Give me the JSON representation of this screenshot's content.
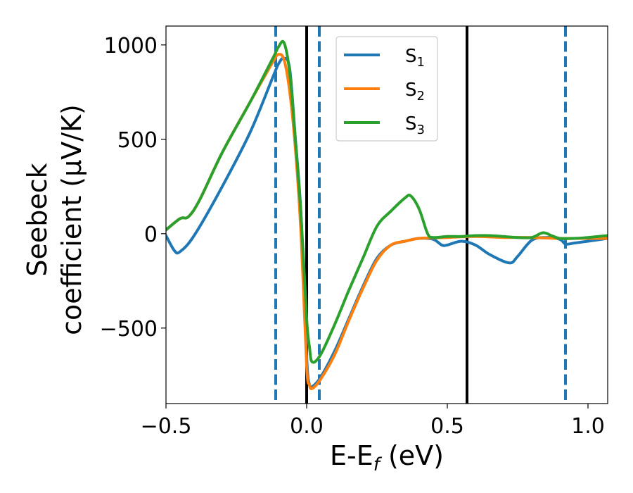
{
  "chart_data": {
    "type": "line",
    "title": "",
    "xlabel": {
      "main": "E-E",
      "sub": "f",
      "unit": " (eV)"
    },
    "ylabel": {
      "line1": "Seebeck",
      "line2": "coefficient  (μV/K)"
    },
    "xlim": [
      -0.5,
      1.07
    ],
    "ylim": [
      -900,
      1100
    ],
    "xticks": [
      -0.5,
      0.0,
      0.5,
      1.0
    ],
    "xtick_labels": [
      "−0.5",
      "0.0",
      "0.5",
      "1.0"
    ],
    "yticks": [
      -500,
      0,
      500,
      1000
    ],
    "ytick_labels": [
      "−500",
      "0",
      "500",
      "1000"
    ],
    "grid": false,
    "legend_position": "top-center",
    "solid_vlines": [
      0.0,
      0.57
    ],
    "dashed_vlines": [
      -0.11,
      0.045,
      0.92
    ],
    "colors": {
      "S1": "#1f77b4",
      "S2": "#ff7f0e",
      "S3": "#2ca02c",
      "solid_vline": "#000000",
      "dashed_vline": "#1f77b4"
    },
    "series": [
      {
        "name": "S",
        "sub": "1",
        "color": "#1f77b4",
        "points": [
          [
            -0.5,
            -10
          ],
          [
            -0.47,
            -90
          ],
          [
            -0.45,
            -95
          ],
          [
            -0.4,
            -10
          ],
          [
            -0.3,
            250
          ],
          [
            -0.2,
            540
          ],
          [
            -0.12,
            830
          ],
          [
            -0.1,
            900
          ],
          [
            -0.08,
            930
          ],
          [
            -0.06,
            870
          ],
          [
            -0.04,
            500
          ],
          [
            -0.02,
            100
          ],
          [
            0.0,
            -650
          ],
          [
            0.01,
            -800
          ],
          [
            0.02,
            -810
          ],
          [
            0.05,
            -760
          ],
          [
            0.1,
            -620
          ],
          [
            0.15,
            -450
          ],
          [
            0.2,
            -280
          ],
          [
            0.25,
            -130
          ],
          [
            0.3,
            -60
          ],
          [
            0.35,
            -40
          ],
          [
            0.4,
            -25
          ],
          [
            0.45,
            -30
          ],
          [
            0.48,
            -60
          ],
          [
            0.5,
            -60
          ],
          [
            0.55,
            -40
          ],
          [
            0.6,
            -60
          ],
          [
            0.65,
            -110
          ],
          [
            0.72,
            -155
          ],
          [
            0.75,
            -120
          ],
          [
            0.8,
            -35
          ],
          [
            0.85,
            -20
          ],
          [
            0.9,
            -30
          ],
          [
            0.92,
            -55
          ],
          [
            0.95,
            -50
          ],
          [
            1.0,
            -40
          ],
          [
            1.07,
            -25
          ]
        ]
      },
      {
        "name": "S",
        "sub": "2",
        "color": "#ff7f0e",
        "points": [
          [
            -0.5,
            20
          ],
          [
            -0.45,
            80
          ],
          [
            -0.42,
            90
          ],
          [
            -0.38,
            180
          ],
          [
            -0.3,
            430
          ],
          [
            -0.2,
            700
          ],
          [
            -0.12,
            910
          ],
          [
            -0.1,
            950
          ],
          [
            -0.08,
            920
          ],
          [
            -0.06,
            750
          ],
          [
            -0.04,
            450
          ],
          [
            -0.02,
            0
          ],
          [
            0.0,
            -700
          ],
          [
            0.01,
            -800
          ],
          [
            0.02,
            -820
          ],
          [
            0.05,
            -770
          ],
          [
            0.1,
            -640
          ],
          [
            0.15,
            -460
          ],
          [
            0.2,
            -290
          ],
          [
            0.25,
            -140
          ],
          [
            0.3,
            -60
          ],
          [
            0.35,
            -40
          ],
          [
            0.4,
            -25
          ],
          [
            0.5,
            -20
          ],
          [
            0.6,
            -15
          ],
          [
            0.7,
            -20
          ],
          [
            0.8,
            -20
          ],
          [
            0.9,
            -25
          ],
          [
            1.0,
            -25
          ],
          [
            1.07,
            -25
          ]
        ]
      },
      {
        "name": "S",
        "sub": "3",
        "color": "#2ca02c",
        "points": [
          [
            -0.5,
            20
          ],
          [
            -0.45,
            80
          ],
          [
            -0.42,
            90
          ],
          [
            -0.38,
            180
          ],
          [
            -0.3,
            430
          ],
          [
            -0.2,
            700
          ],
          [
            -0.12,
            930
          ],
          [
            -0.1,
            990
          ],
          [
            -0.08,
            1010
          ],
          [
            -0.06,
            850
          ],
          [
            -0.04,
            500
          ],
          [
            -0.02,
            100
          ],
          [
            0.0,
            -450
          ],
          [
            0.01,
            -600
          ],
          [
            0.02,
            -680
          ],
          [
            0.05,
            -640
          ],
          [
            0.1,
            -480
          ],
          [
            0.15,
            -300
          ],
          [
            0.2,
            -130
          ],
          [
            0.25,
            40
          ],
          [
            0.3,
            120
          ],
          [
            0.35,
            190
          ],
          [
            0.37,
            200
          ],
          [
            0.4,
            130
          ],
          [
            0.43,
            0
          ],
          [
            0.45,
            -20
          ],
          [
            0.5,
            -15
          ],
          [
            0.55,
            -15
          ],
          [
            0.6,
            -10
          ],
          [
            0.65,
            -10
          ],
          [
            0.7,
            -15
          ],
          [
            0.75,
            -20
          ],
          [
            0.8,
            -20
          ],
          [
            0.84,
            5
          ],
          [
            0.87,
            -10
          ],
          [
            0.9,
            -25
          ],
          [
            0.95,
            -25
          ],
          [
            1.0,
            -20
          ],
          [
            1.07,
            -10
          ]
        ]
      }
    ]
  }
}
